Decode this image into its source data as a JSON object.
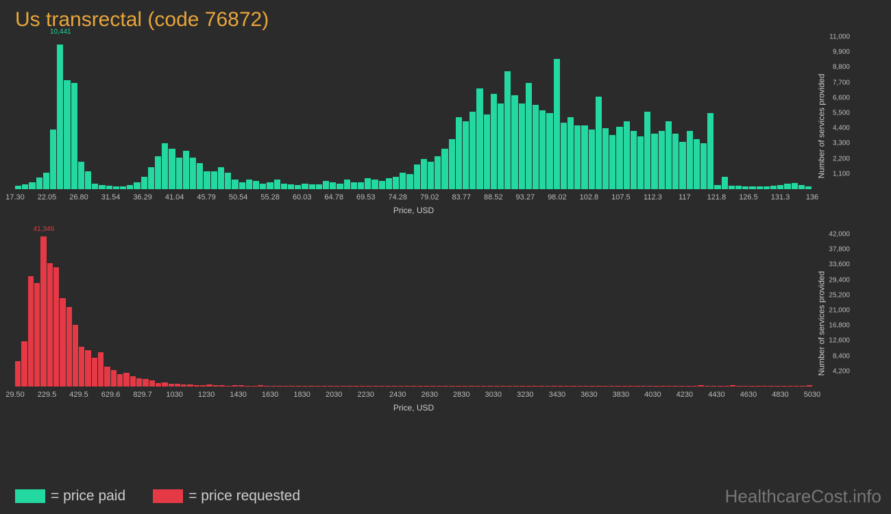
{
  "title": "Us transrectal (code 76872)",
  "legend": {
    "paid": {
      "label": "= price paid",
      "color": "#24d8a1"
    },
    "requested": {
      "label": "= price requested",
      "color": "#e53a46"
    }
  },
  "watermark": "HealthcareCost.info",
  "axis_labels": {
    "x": "Price, USD",
    "y": "Number of services provided"
  },
  "colors": {
    "background": "#2b2b2b",
    "title": "#e8a53a",
    "tick": "#bbbbbb",
    "axis_label": "#cccccc",
    "paid": "#24d8a1",
    "requested": "#e53a46"
  },
  "chart_paid": {
    "type": "histogram",
    "bar_color": "#24d8a1",
    "peak_label": "10,441",
    "peak_index": 6,
    "peak_color": "#24d8a1",
    "y_max": 11000,
    "y_ticks": [
      "1,100",
      "2,200",
      "3,300",
      "4,400",
      "5,500",
      "6,600",
      "7,700",
      "8,800",
      "9,900",
      "11,000"
    ],
    "x_ticks": [
      "17.30",
      "22.05",
      "26.80",
      "31.54",
      "36.29",
      "41.04",
      "45.79",
      "50.54",
      "55.28",
      "60.03",
      "64.78",
      "69.53",
      "74.28",
      "79.02",
      "83.77",
      "88.52",
      "93.27",
      "98.02",
      "102.8",
      "107.5",
      "112.3",
      "117",
      "121.8",
      "126.5",
      "131.3",
      "136"
    ],
    "values": [
      250,
      350,
      500,
      850,
      1200,
      4300,
      10441,
      7900,
      7700,
      2000,
      1300,
      400,
      300,
      250,
      200,
      200,
      300,
      500,
      900,
      1600,
      2400,
      3300,
      2900,
      2300,
      2800,
      2300,
      1900,
      1300,
      1300,
      1600,
      1200,
      700,
      500,
      700,
      600,
      400,
      500,
      700,
      400,
      350,
      300,
      400,
      350,
      350,
      600,
      500,
      400,
      700,
      500,
      500,
      800,
      700,
      600,
      800,
      900,
      1200,
      1100,
      1800,
      2200,
      2000,
      2400,
      2900,
      3600,
      5200,
      4900,
      5600,
      7300,
      5400,
      6900,
      6200,
      8500,
      6800,
      6200,
      7700,
      6100,
      5700,
      5500,
      9400,
      4800,
      5200,
      4600,
      4600,
      4300,
      6700,
      4400,
      3900,
      4500,
      4900,
      4200,
      3800,
      5600,
      4000,
      4200,
      4900,
      4000,
      3400,
      4200,
      3600,
      3300,
      5500,
      300,
      900,
      250,
      250,
      200,
      200,
      200,
      200,
      250,
      300,
      400,
      450,
      300,
      200
    ]
  },
  "chart_requested": {
    "type": "histogram",
    "bar_color": "#e53a46",
    "peak_label": "41,346",
    "peak_index": 4,
    "peak_color": "#e53a46",
    "y_max": 42000,
    "y_ticks": [
      "4,200",
      "8,400",
      "12,600",
      "16,800",
      "21,000",
      "25,200",
      "29,400",
      "33,600",
      "37,800",
      "42,000"
    ],
    "x_ticks": [
      "29.50",
      "229.5",
      "429.5",
      "629.6",
      "829.7",
      "1030",
      "1230",
      "1430",
      "1630",
      "1830",
      "2030",
      "2230",
      "2430",
      "2630",
      "2830",
      "3030",
      "3230",
      "3430",
      "3630",
      "3830",
      "4030",
      "4230",
      "4430",
      "4630",
      "4830",
      "5030"
    ],
    "values": [
      7000,
      12500,
      30500,
      28500,
      41346,
      34000,
      33000,
      24500,
      22000,
      17000,
      11000,
      10000,
      8000,
      9500,
      5500,
      4500,
      3500,
      3800,
      2800,
      2200,
      2000,
      1800,
      1000,
      1200,
      800,
      700,
      500,
      600,
      400,
      300,
      500,
      400,
      300,
      200,
      400,
      300,
      200,
      200,
      300,
      200,
      150,
      200,
      150,
      150,
      200,
      150,
      150,
      150,
      150,
      150,
      150,
      150,
      150,
      150,
      150,
      150,
      150,
      150,
      150,
      150,
      150,
      150,
      150,
      150,
      150,
      150,
      150,
      150,
      150,
      150,
      150,
      150,
      150,
      150,
      150,
      150,
      150,
      150,
      150,
      150,
      150,
      150,
      150,
      150,
      150,
      150,
      150,
      150,
      150,
      150,
      150,
      150,
      150,
      150,
      150,
      150,
      150,
      150,
      150,
      150,
      150,
      150,
      150,
      150,
      150,
      150,
      150,
      400,
      150,
      150,
      150,
      150,
      300,
      150,
      150,
      150,
      150,
      150,
      150,
      150,
      150,
      150,
      150,
      150,
      300
    ]
  }
}
